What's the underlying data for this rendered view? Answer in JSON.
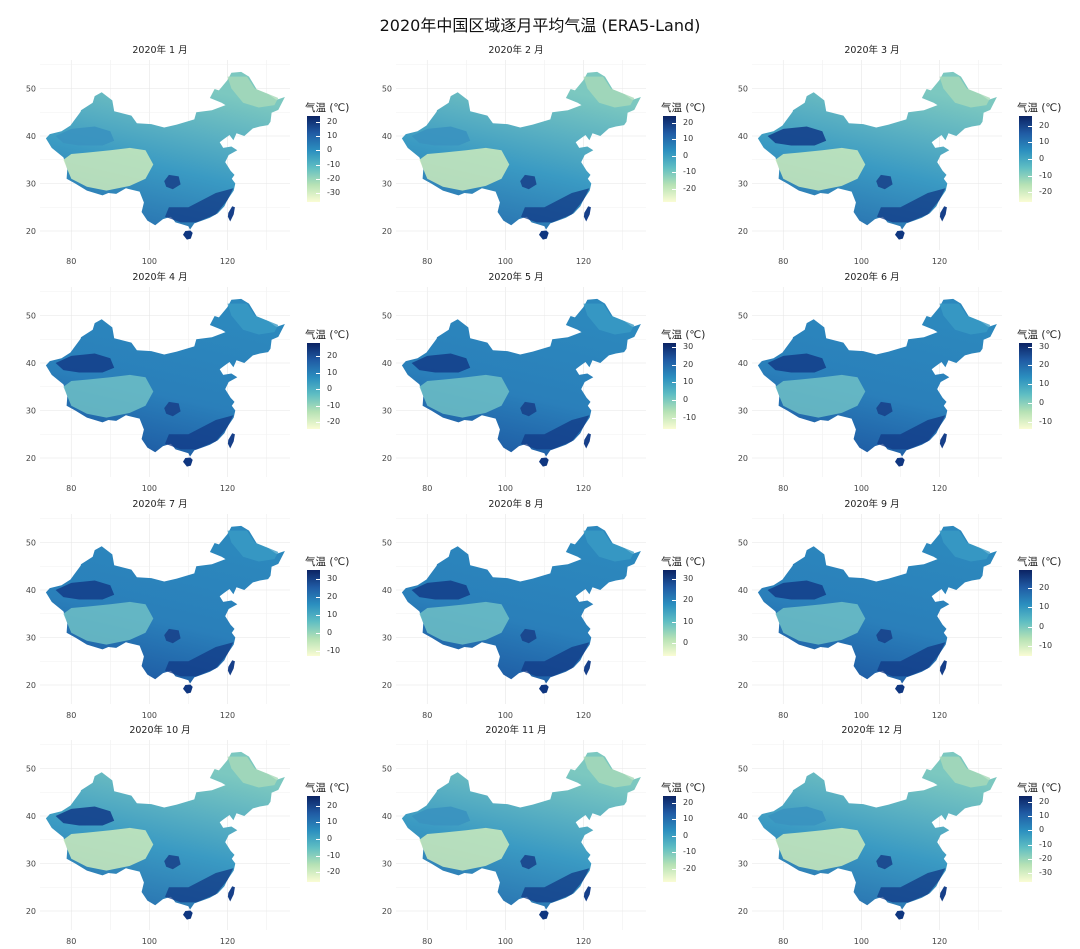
{
  "title": "2020年中国区域逐月平均气温 (ERA5-Land)",
  "legend_title": "气温 (℃)",
  "chart_data": [
    {
      "type": "heatmap",
      "title": "2020年 1 月",
      "xlim": [
        72,
        136
      ],
      "ylim": [
        16,
        56
      ],
      "x_ticks": [
        80,
        100,
        120
      ],
      "y_ticks": [
        20,
        30,
        40,
        50
      ],
      "legend_ticks": [
        20,
        10,
        0,
        -10,
        -20,
        -30
      ],
      "value_range": [
        -36,
        24
      ]
    },
    {
      "type": "heatmap",
      "title": "2020年 2 月",
      "xlim": [
        72,
        136
      ],
      "ylim": [
        16,
        56
      ],
      "x_ticks": [
        80,
        100,
        120
      ],
      "y_ticks": [
        20,
        30,
        40,
        50
      ],
      "legend_ticks": [
        20,
        10,
        0,
        -10,
        -20
      ],
      "value_range": [
        -28,
        24
      ]
    },
    {
      "type": "heatmap",
      "title": "2020年 3 月",
      "xlim": [
        72,
        136
      ],
      "ylim": [
        16,
        56
      ],
      "x_ticks": [
        80,
        100,
        120
      ],
      "y_ticks": [
        20,
        30,
        40,
        50
      ],
      "legend_ticks": [
        20,
        10,
        0,
        -10,
        -20
      ],
      "value_range": [
        -26,
        26
      ]
    },
    {
      "type": "heatmap",
      "title": "2020年 4 月",
      "xlim": [
        72,
        136
      ],
      "ylim": [
        16,
        56
      ],
      "x_ticks": [
        80,
        100,
        120
      ],
      "y_ticks": [
        20,
        30,
        40,
        50
      ],
      "legend_ticks": [
        20,
        10,
        0,
        -10,
        -20
      ],
      "value_range": [
        -24,
        28
      ]
    },
    {
      "type": "heatmap",
      "title": "2020年 5 月",
      "xlim": [
        72,
        136
      ],
      "ylim": [
        16,
        56
      ],
      "x_ticks": [
        80,
        100,
        120
      ],
      "y_ticks": [
        20,
        30,
        40,
        50
      ],
      "legend_ticks": [
        30,
        20,
        10,
        0,
        -10
      ],
      "value_range": [
        -16,
        32
      ]
    },
    {
      "type": "heatmap",
      "title": "2020年 6 月",
      "xlim": [
        72,
        136
      ],
      "ylim": [
        16,
        56
      ],
      "x_ticks": [
        80,
        100,
        120
      ],
      "y_ticks": [
        20,
        30,
        40,
        50
      ],
      "legend_ticks": [
        30,
        20,
        10,
        0,
        -10
      ],
      "value_range": [
        -14,
        32
      ]
    },
    {
      "type": "heatmap",
      "title": "2020年 7 月",
      "xlim": [
        72,
        136
      ],
      "ylim": [
        16,
        56
      ],
      "x_ticks": [
        80,
        100,
        120
      ],
      "y_ticks": [
        20,
        30,
        40,
        50
      ],
      "legend_ticks": [
        30,
        20,
        10,
        0,
        -10
      ],
      "value_range": [
        -13,
        35
      ]
    },
    {
      "type": "heatmap",
      "title": "2020年 8 月",
      "xlim": [
        72,
        136
      ],
      "ylim": [
        16,
        56
      ],
      "x_ticks": [
        80,
        100,
        120
      ],
      "y_ticks": [
        20,
        30,
        40,
        50
      ],
      "legend_ticks": [
        30,
        20,
        10,
        0
      ],
      "value_range": [
        -6,
        34
      ]
    },
    {
      "type": "heatmap",
      "title": "2020年 9 月",
      "xlim": [
        72,
        136
      ],
      "ylim": [
        16,
        56
      ],
      "x_ticks": [
        80,
        100,
        120
      ],
      "y_ticks": [
        20,
        30,
        40,
        50
      ],
      "legend_ticks": [
        20,
        10,
        0,
        -10
      ],
      "value_range": [
        -15,
        29
      ]
    },
    {
      "type": "heatmap",
      "title": "2020年 10 月",
      "xlim": [
        72,
        136
      ],
      "ylim": [
        16,
        56
      ],
      "x_ticks": [
        80,
        100,
        120
      ],
      "y_ticks": [
        20,
        30,
        40,
        50
      ],
      "legend_ticks": [
        20,
        10,
        0,
        -10,
        -20
      ],
      "value_range": [
        -26,
        26
      ]
    },
    {
      "type": "heatmap",
      "title": "2020年 11 月",
      "xlim": [
        72,
        136
      ],
      "ylim": [
        16,
        56
      ],
      "x_ticks": [
        80,
        100,
        120
      ],
      "y_ticks": [
        20,
        30,
        40,
        50
      ],
      "legend_ticks": [
        20,
        10,
        0,
        -10,
        -20
      ],
      "value_range": [
        -28,
        24
      ]
    },
    {
      "type": "heatmap",
      "title": "2020年 12 月",
      "xlim": [
        72,
        136
      ],
      "ylim": [
        16,
        56
      ],
      "x_ticks": [
        80,
        100,
        120
      ],
      "y_ticks": [
        20,
        30,
        40,
        50
      ],
      "legend_ticks": [
        20,
        10,
        0,
        -10,
        -20,
        -30
      ],
      "value_range": [
        -36,
        24
      ]
    }
  ]
}
